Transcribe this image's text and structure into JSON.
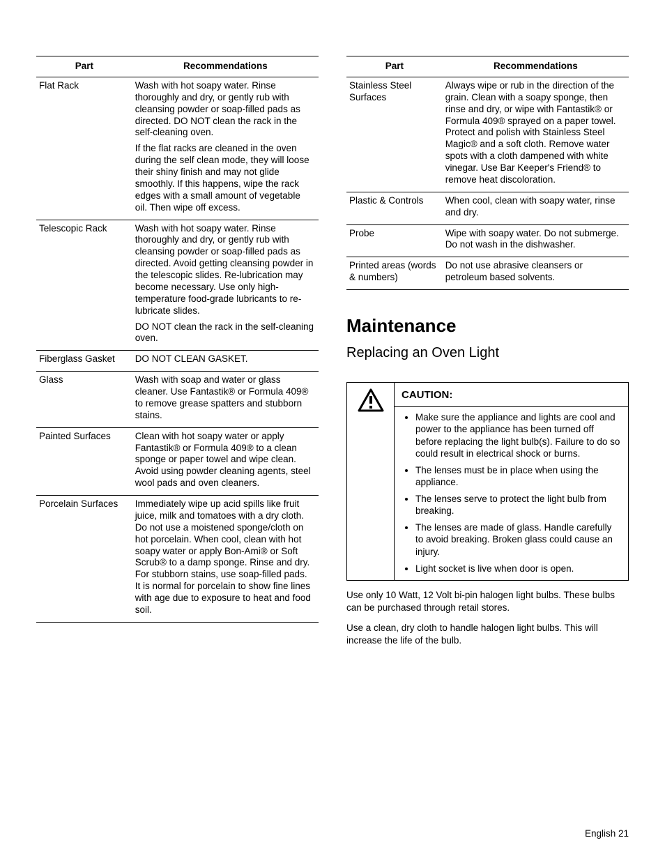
{
  "table_headers": {
    "part": "Part",
    "rec": "Recommendations"
  },
  "left_table": [
    {
      "part": "Flat Rack",
      "paras": [
        "Wash with hot soapy water. Rinse thoroughly and dry, or gently rub with cleansing powder or soap-filled pads as directed. DO NOT clean the rack in the self-cleaning oven.",
        "If the flat racks are cleaned in the oven during the self clean mode, they will loose their shiny finish and may not glide smoothly. If this happens, wipe the rack edges with a small amount of vegetable oil. Then wipe off excess."
      ]
    },
    {
      "part": "Telescopic Rack",
      "paras": [
        "Wash with hot soapy water. Rinse thoroughly and dry, or gently rub with cleansing powder or soap-filled pads as directed. Avoid getting cleansing powder in the telescopic slides. Re-lubrication may become necessary. Use only high-temperature food-grade lubricants to re-lubricate slides.",
        "DO NOT clean the rack in the self-cleaning oven."
      ]
    },
    {
      "part": "Fiberglass Gasket",
      "paras": [
        "DO NOT CLEAN GASKET."
      ]
    },
    {
      "part": "Glass",
      "paras": [
        "Wash with soap and water or glass cleaner. Use Fantastik® or Formula 409® to remove grease spatters and stubborn stains."
      ]
    },
    {
      "part": "Painted Surfaces",
      "paras": [
        "Clean with hot soapy water or apply Fantastik® or Formula 409® to a clean sponge or paper towel and wipe clean. Avoid using powder cleaning agents, steel wool pads and oven cleaners."
      ]
    },
    {
      "part": "Porcelain Surfaces",
      "paras": [
        "Immediately wipe up acid spills like fruit juice, milk and tomatoes with a dry cloth. Do not use a moistened sponge/cloth on hot porcelain. When cool, clean with hot soapy water or apply Bon-Ami® or Soft Scrub® to a damp sponge. Rinse and dry. For stubborn stains, use soap-filled pads. It is normal for porcelain to show fine lines with age due to exposure to heat and food soil."
      ]
    }
  ],
  "right_table": [
    {
      "part": "Stainless Steel Surfaces",
      "paras": [
        "Always wipe or rub in the direction of the grain. Clean with a soapy sponge, then rinse and dry, or wipe with Fantastik® or Formula 409® sprayed on a paper towel. Protect and polish with Stainless Steel Magic® and a soft cloth. Remove water spots with a cloth dampened with white vinegar. Use Bar Keeper's Friend® to remove heat discoloration."
      ]
    },
    {
      "part": "Plastic & Controls",
      "paras": [
        "When cool, clean with soapy water, rinse and dry."
      ]
    },
    {
      "part": "Probe",
      "paras": [
        "Wipe with soapy water. Do not submerge. Do not wash in the dishwasher."
      ]
    },
    {
      "part": "Printed areas (words & numbers)",
      "paras": [
        "Do not use abrasive cleansers or petroleum based solvents."
      ]
    }
  ],
  "maintenance": {
    "heading": "Maintenance",
    "subheading": "Replacing an Oven Light",
    "caution_label": "CAUTION:",
    "caution_items": [
      "Make sure the appliance and lights are cool and power to the appliance has been turned off before replacing the light bulb(s). Failure to do so could result in electrical shock or burns.",
      "The lenses must be in place when using the appliance.",
      "The lenses serve to protect the light bulb from breaking.",
      "The lenses are made of glass. Handle carefully to avoid breaking. Broken glass could cause an injury.",
      "Light socket is live when door is open."
    ],
    "body": [
      "Use only 10 Watt, 12 Volt bi-pin halogen light bulbs. These bulbs can be purchased through retail stores.",
      "Use a clean, dry cloth to handle halogen light bulbs. This will increase the life of the bulb."
    ]
  },
  "footer": "English 21"
}
